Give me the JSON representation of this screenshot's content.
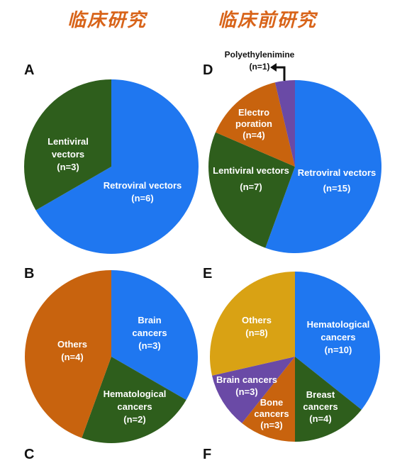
{
  "headers": {
    "left": "临床研究",
    "right": "临床前研究",
    "color": "#d8641a"
  },
  "panel_letters": {
    "a": "A",
    "b": "B",
    "c": "C",
    "d": "D",
    "e": "E",
    "f": "F"
  },
  "colors": {
    "blue": "#1f77f0",
    "green": "#2e5e1c",
    "orange": "#c8630e",
    "purple": "#6a4aa6",
    "gold": "#d9a214"
  },
  "chart_data": [
    {
      "panel": "A",
      "type": "pie",
      "slices": [
        {
          "label": "Retroviral vectors",
          "n": "(n=6)",
          "value": 6,
          "color": "#1f77f0"
        },
        {
          "label": "Lentiviral vectors",
          "n": "(n=3)",
          "value": 3,
          "color": "#2e5e1c"
        }
      ]
    },
    {
      "panel": "B",
      "type": "pie",
      "slices": [
        {
          "label": "Brain cancers",
          "n": "(n=3)",
          "value": 3,
          "color": "#1f77f0"
        },
        {
          "label": "Hematological cancers",
          "n": "(n=2)",
          "value": 2,
          "color": "#2e5e1c"
        },
        {
          "label": "Others",
          "n": "(n=4)",
          "value": 4,
          "color": "#c8630e"
        }
      ]
    },
    {
      "panel": "D",
      "type": "pie",
      "slices": [
        {
          "label": "Retroviral vectors",
          "n": "(n=15)",
          "value": 15,
          "color": "#1f77f0"
        },
        {
          "label": "Lentiviral vectors",
          "n": "(n=7)",
          "value": 7,
          "color": "#2e5e1c"
        },
        {
          "label": "Electro poration",
          "n": "(n=4)",
          "value": 4,
          "color": "#c8630e"
        },
        {
          "label": "Polyethylenimine",
          "n": "(n=1)",
          "value": 1,
          "color": "#6a4aa6"
        }
      ]
    },
    {
      "panel": "E",
      "type": "pie",
      "slices": [
        {
          "label": "Hematological cancers",
          "n": "(n=10)",
          "value": 10,
          "color": "#1f77f0"
        },
        {
          "label": "Breast cancers",
          "n": "(n=4)",
          "value": 4,
          "color": "#2e5e1c"
        },
        {
          "label": "Bone cancers",
          "n": "(n=3)",
          "value": 3,
          "color": "#c8630e"
        },
        {
          "label": "Brain cancers",
          "n": "(n=3)",
          "value": 3,
          "color": "#6a4aa6"
        },
        {
          "label": "Others",
          "n": "(n=8)",
          "value": 8,
          "color": "#d9a214"
        }
      ]
    }
  ]
}
